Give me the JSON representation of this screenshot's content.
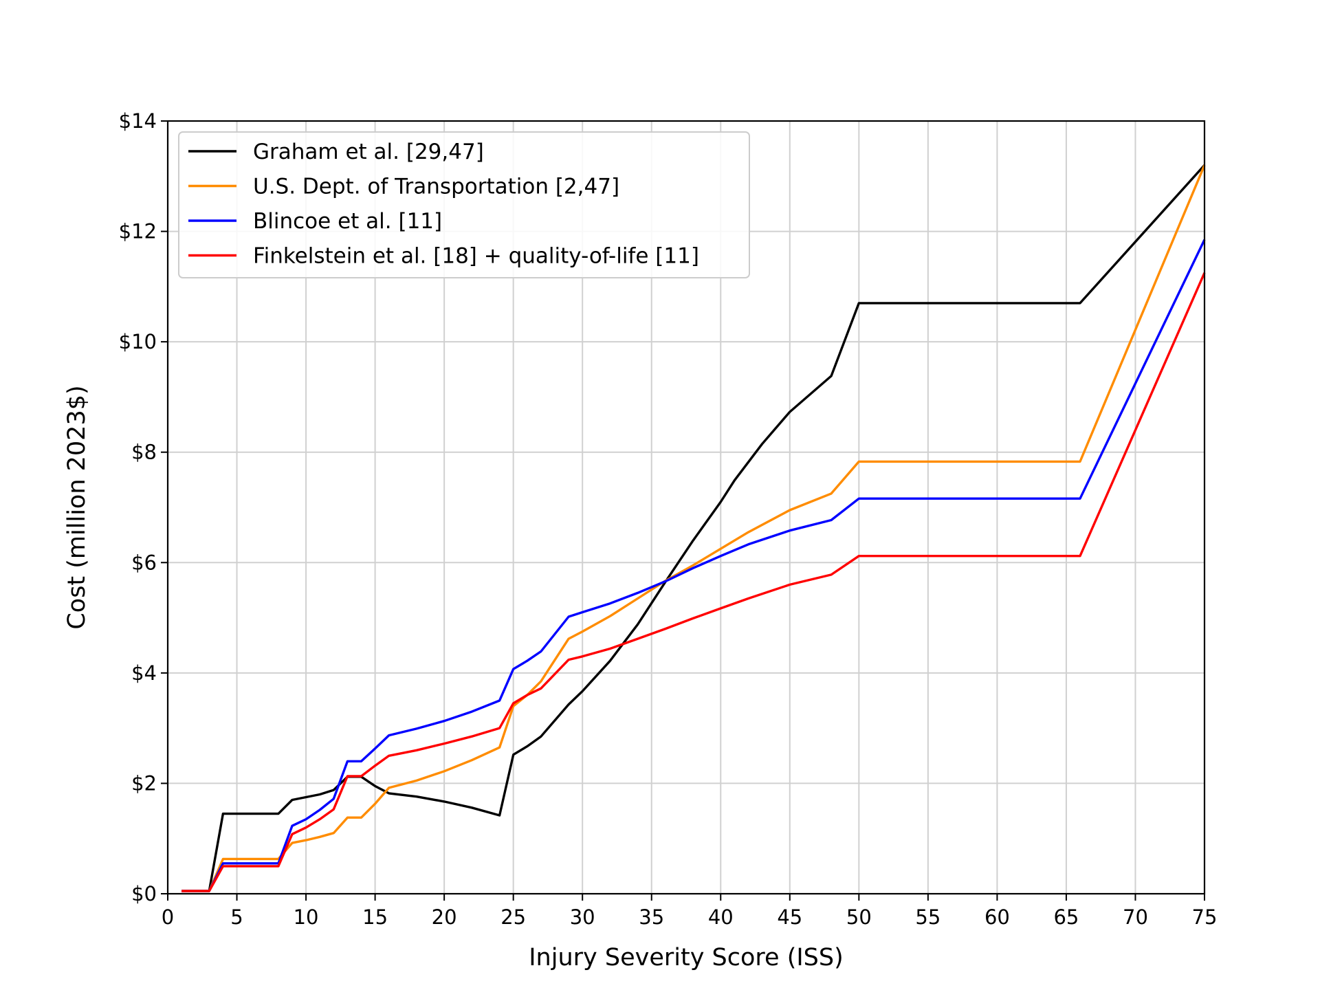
{
  "chart_data": {
    "type": "line",
    "title": "",
    "xlabel": "Injury Severity Score (ISS)",
    "ylabel": "Cost (million 2023$)",
    "xlim": [
      0,
      75
    ],
    "ylim": [
      0,
      14
    ],
    "x_ticks": [
      0,
      5,
      10,
      15,
      20,
      25,
      30,
      35,
      40,
      45,
      50,
      55,
      60,
      65,
      70,
      75
    ],
    "x_tick_labels": [
      "0",
      "5",
      "10",
      "15",
      "20",
      "25",
      "30",
      "35",
      "40",
      "45",
      "50",
      "55",
      "60",
      "65",
      "70",
      "75"
    ],
    "y_ticks": [
      0,
      2,
      4,
      6,
      8,
      10,
      12,
      14
    ],
    "y_tick_labels": [
      "$0",
      "$2",
      "$4",
      "$6",
      "$8",
      "$10",
      "$12",
      "$14"
    ],
    "grid": true,
    "legend_position": "top-left",
    "series": [
      {
        "name": "Graham et al. [29,47]",
        "color": "#000000",
        "points": [
          [
            1,
            0.05
          ],
          [
            2,
            0.05
          ],
          [
            3,
            0.05
          ],
          [
            4,
            1.45
          ],
          [
            5,
            1.45
          ],
          [
            6,
            1.45
          ],
          [
            7,
            1.45
          ],
          [
            8,
            1.45
          ],
          [
            9,
            1.7
          ],
          [
            10,
            1.75
          ],
          [
            11,
            1.8
          ],
          [
            12,
            1.88
          ],
          [
            13,
            2.12
          ],
          [
            14,
            2.12
          ],
          [
            15,
            1.95
          ],
          [
            16,
            1.82
          ],
          [
            18,
            1.76
          ],
          [
            20,
            1.67
          ],
          [
            22,
            1.56
          ],
          [
            24,
            1.42
          ],
          [
            25,
            2.52
          ],
          [
            26,
            2.67
          ],
          [
            27,
            2.85
          ],
          [
            29,
            3.43
          ],
          [
            30,
            3.67
          ],
          [
            32,
            4.22
          ],
          [
            34,
            4.88
          ],
          [
            36,
            5.65
          ],
          [
            38,
            6.4
          ],
          [
            40,
            7.1
          ],
          [
            41,
            7.49
          ],
          [
            43,
            8.15
          ],
          [
            45,
            8.73
          ],
          [
            48,
            9.38
          ],
          [
            50,
            10.7
          ],
          [
            55,
            10.7
          ],
          [
            60,
            10.7
          ],
          [
            66,
            10.7
          ],
          [
            75,
            13.2
          ]
        ]
      },
      {
        "name": "U.S. Dept. of Transportation [2,47]",
        "color": "#ff8c00",
        "points": [
          [
            1,
            0.05
          ],
          [
            2,
            0.05
          ],
          [
            3,
            0.05
          ],
          [
            4,
            0.63
          ],
          [
            5,
            0.63
          ],
          [
            6,
            0.63
          ],
          [
            7,
            0.63
          ],
          [
            8,
            0.63
          ],
          [
            9,
            0.92
          ],
          [
            10,
            0.97
          ],
          [
            11,
            1.03
          ],
          [
            12,
            1.1
          ],
          [
            13,
            1.38
          ],
          [
            14,
            1.38
          ],
          [
            15,
            1.63
          ],
          [
            16,
            1.92
          ],
          [
            18,
            2.05
          ],
          [
            20,
            2.22
          ],
          [
            22,
            2.42
          ],
          [
            24,
            2.65
          ],
          [
            25,
            3.4
          ],
          [
            26,
            3.6
          ],
          [
            27,
            3.85
          ],
          [
            29,
            4.62
          ],
          [
            30,
            4.75
          ],
          [
            32,
            5.03
          ],
          [
            34,
            5.35
          ],
          [
            36,
            5.67
          ],
          [
            38,
            5.95
          ],
          [
            40,
            6.25
          ],
          [
            42,
            6.55
          ],
          [
            45,
            6.95
          ],
          [
            48,
            7.25
          ],
          [
            50,
            7.83
          ],
          [
            55,
            7.83
          ],
          [
            60,
            7.83
          ],
          [
            66,
            7.83
          ],
          [
            75,
            13.2
          ]
        ]
      },
      {
        "name": "Blincoe et al. [11]",
        "color": "#0000ff",
        "points": [
          [
            1,
            0.05
          ],
          [
            2,
            0.05
          ],
          [
            3,
            0.05
          ],
          [
            4,
            0.55
          ],
          [
            5,
            0.55
          ],
          [
            6,
            0.55
          ],
          [
            7,
            0.55
          ],
          [
            8,
            0.55
          ],
          [
            9,
            1.23
          ],
          [
            10,
            1.35
          ],
          [
            11,
            1.52
          ],
          [
            12,
            1.72
          ],
          [
            13,
            2.4
          ],
          [
            14,
            2.4
          ],
          [
            15,
            2.63
          ],
          [
            16,
            2.87
          ],
          [
            18,
            2.99
          ],
          [
            20,
            3.13
          ],
          [
            22,
            3.3
          ],
          [
            24,
            3.5
          ],
          [
            25,
            4.07
          ],
          [
            26,
            4.22
          ],
          [
            27,
            4.39
          ],
          [
            29,
            5.02
          ],
          [
            30,
            5.1
          ],
          [
            32,
            5.26
          ],
          [
            34,
            5.45
          ],
          [
            36,
            5.66
          ],
          [
            38,
            5.9
          ],
          [
            40,
            6.12
          ],
          [
            42,
            6.33
          ],
          [
            45,
            6.58
          ],
          [
            48,
            6.77
          ],
          [
            50,
            7.16
          ],
          [
            55,
            7.16
          ],
          [
            60,
            7.16
          ],
          [
            66,
            7.16
          ],
          [
            75,
            11.85
          ]
        ]
      },
      {
        "name": "Finkelstein et al. [18] + quality-of-life [11]",
        "color": "#ff0000",
        "points": [
          [
            1,
            0.05
          ],
          [
            2,
            0.05
          ],
          [
            3,
            0.05
          ],
          [
            4,
            0.5
          ],
          [
            5,
            0.5
          ],
          [
            6,
            0.5
          ],
          [
            7,
            0.5
          ],
          [
            8,
            0.5
          ],
          [
            9,
            1.08
          ],
          [
            10,
            1.2
          ],
          [
            11,
            1.35
          ],
          [
            12,
            1.53
          ],
          [
            13,
            2.13
          ],
          [
            14,
            2.13
          ],
          [
            15,
            2.32
          ],
          [
            16,
            2.5
          ],
          [
            18,
            2.6
          ],
          [
            20,
            2.72
          ],
          [
            22,
            2.85
          ],
          [
            24,
            3.0
          ],
          [
            25,
            3.45
          ],
          [
            26,
            3.6
          ],
          [
            27,
            3.72
          ],
          [
            29,
            4.24
          ],
          [
            30,
            4.3
          ],
          [
            32,
            4.44
          ],
          [
            34,
            4.62
          ],
          [
            36,
            4.8
          ],
          [
            38,
            4.99
          ],
          [
            40,
            5.17
          ],
          [
            42,
            5.35
          ],
          [
            45,
            5.6
          ],
          [
            48,
            5.78
          ],
          [
            50,
            6.12
          ],
          [
            55,
            6.12
          ],
          [
            60,
            6.12
          ],
          [
            66,
            6.12
          ],
          [
            75,
            11.25
          ]
        ]
      }
    ]
  }
}
